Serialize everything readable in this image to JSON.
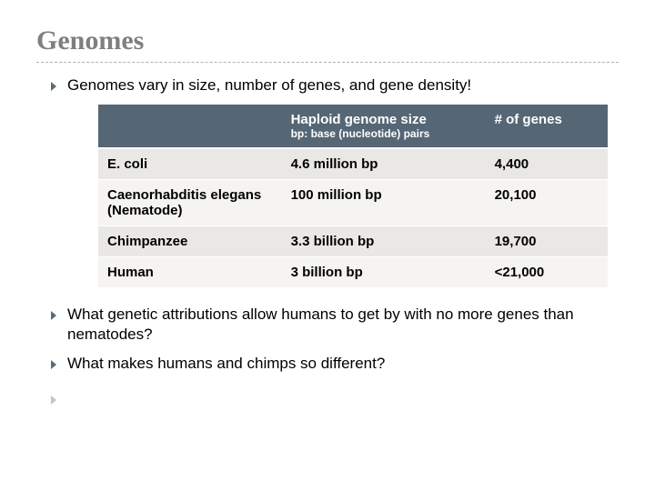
{
  "title": "Genomes",
  "bullets_top": [
    "Genomes vary in size, number of genes, and gene density!"
  ],
  "table": {
    "header_bg": "#556675",
    "columns": [
      {
        "label": "",
        "sub": ""
      },
      {
        "label": "Haploid genome size",
        "sub": "bp: base (nucleotide) pairs"
      },
      {
        "label": "# of genes",
        "sub": ""
      }
    ],
    "rows": [
      [
        "E. coli",
        "4.6 million bp",
        "4,400"
      ],
      [
        "Caenorhabditis elegans (Nematode)",
        "100 million bp",
        "20,100"
      ],
      [
        "Chimpanzee",
        "3.3 billion bp",
        "19,700"
      ],
      [
        "Human",
        "3 billion bp",
        "<21,000"
      ]
    ]
  },
  "bullets_bottom": [
    "What genetic attributions allow humans to get by with no more genes than nematodes?",
    " What makes humans and chimps so different?"
  ]
}
